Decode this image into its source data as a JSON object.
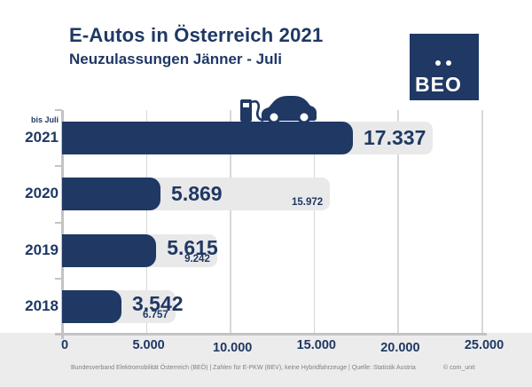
{
  "header": {
    "title": "E-Autos in Österreich 2021",
    "subtitle": "Neuzulassungen Jänner - Juli"
  },
  "logo": {
    "text": "BEO"
  },
  "icons": {
    "car": "electric-car-charging-icon"
  },
  "chart_data": {
    "type": "bar",
    "orientation": "horizontal",
    "title": "E-Autos in Österreich 2021",
    "subtitle": "Neuzulassungen Jänner - Juli",
    "xlim": [
      0,
      25000
    ],
    "grid": true,
    "legend": false,
    "x_ticks": [
      {
        "value": 0,
        "label": "0"
      },
      {
        "value": 5000,
        "label": "5.000"
      },
      {
        "value": 10000,
        "label": "10.000"
      },
      {
        "value": 15000,
        "label": "15.000"
      },
      {
        "value": 20000,
        "label": "20.000"
      },
      {
        "value": 25000,
        "label": "25.000"
      }
    ],
    "categories": [
      "2021",
      "2020",
      "2019",
      "2018"
    ],
    "series_meaning": {
      "dark": "Neuzulassungen Jänner - Juli (dark navy bar)",
      "gray": "Gesamtjahr / full-year total (light gray bar)"
    },
    "rows": [
      {
        "year": "2021",
        "note": "bis Juli",
        "value": 17337,
        "value_label": "17.337",
        "total": null,
        "total_label": ""
      },
      {
        "year": "2020",
        "note": "",
        "value": 5869,
        "value_label": "5.869",
        "total": 15972,
        "total_label": "15.972"
      },
      {
        "year": "2019",
        "note": "",
        "value": 5615,
        "value_label": "5.615",
        "total": 9242,
        "total_label": "9.242"
      },
      {
        "year": "2018",
        "note": "",
        "value": 3542,
        "value_label": "3.542",
        "total": 6757,
        "total_label": "6.757"
      }
    ]
  },
  "footer": {
    "source_line": "Bundesverband Elektromobilität Österreich (BEÖ) | Zahlen für E-PKW (BEV), keine Hybridfahrzeuge | Quelle: Statistik Austria",
    "copyright": "© com_unit"
  },
  "colors": {
    "navy": "#1F3864",
    "bar_gray": "#E9E9E9",
    "gridline": "#D7D7D7",
    "axis": "#C3C3C3",
    "footer_bg": "#ECECEC",
    "footer_text": "#7F7F7F",
    "background": "#FFFFFF"
  }
}
